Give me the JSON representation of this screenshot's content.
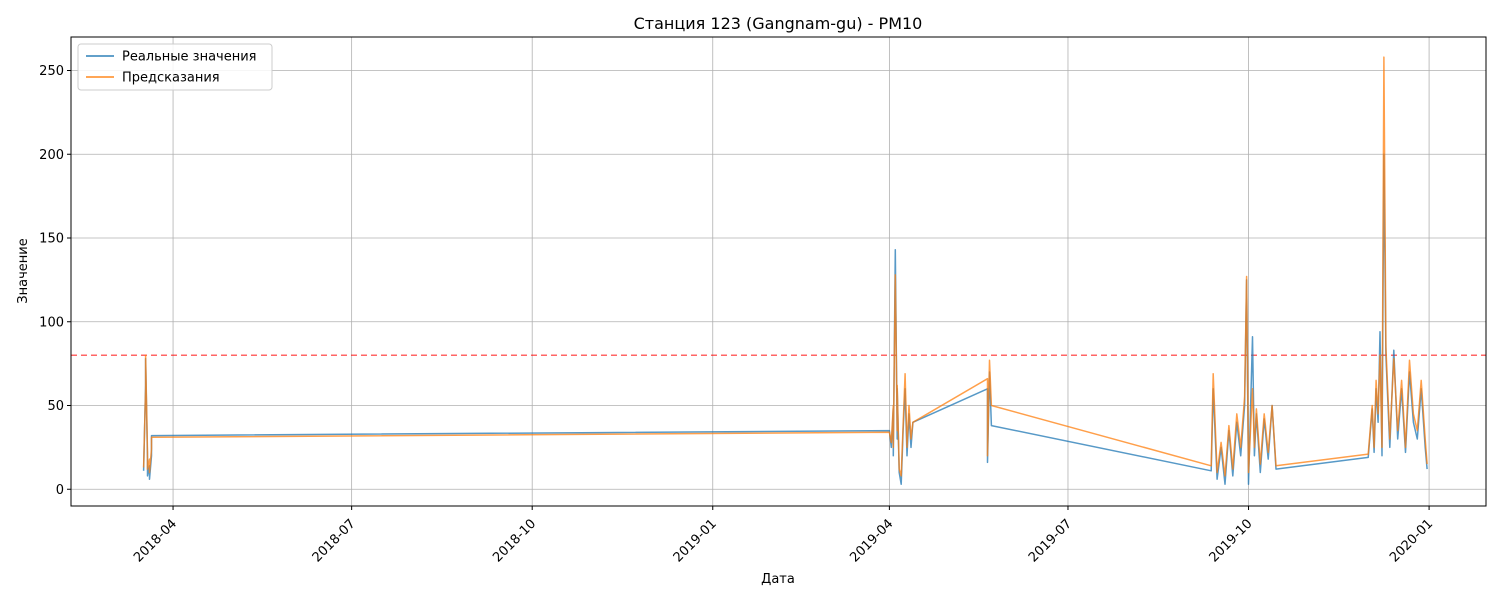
{
  "chart_data": {
    "type": "line",
    "title": "Станция 123 (Gangnam-gu) - PM10",
    "xlabel": "Дата",
    "ylabel": "Значение",
    "x_ticks": [
      "2018-04",
      "2018-07",
      "2018-10",
      "2019-01",
      "2019-04",
      "2019-07",
      "2019-10",
      "2020-01"
    ],
    "y_ticks": [
      0,
      50,
      100,
      150,
      200,
      250
    ],
    "xlim": [
      "2018-02-08",
      "2020-01-30"
    ],
    "ylim": [
      -10,
      270
    ],
    "grid": true,
    "legend_position": "top-left",
    "threshold": {
      "y": 80,
      "color": "#ff0000",
      "style": "dashed"
    },
    "series": [
      {
        "name": "Реальные значения",
        "color": "#1f77b4",
        "x": [
          "2018-03-17",
          "2018-03-18",
          "2018-03-18",
          "2018-03-19",
          "2018-03-19",
          "2018-03-20",
          "2018-03-20",
          "2018-03-21",
          "2018-03-21",
          "2018-03-22",
          "2018-03-22",
          "2019-04-01",
          "2019-04-02",
          "2019-04-03",
          "2019-04-03",
          "2019-04-04",
          "2019-04-05",
          "2019-04-05",
          "2019-04-06",
          "2019-04-07",
          "2019-04-08",
          "2019-04-09",
          "2019-04-10",
          "2019-04-11",
          "2019-04-12",
          "2019-04-13",
          "2019-05-21",
          "2019-05-21",
          "2019-05-22",
          "2019-05-23",
          "2019-09-12",
          "2019-09-13",
          "2019-09-15",
          "2019-09-17",
          "2019-09-19",
          "2019-09-21",
          "2019-09-23",
          "2019-09-25",
          "2019-09-27",
          "2019-09-29",
          "2019-09-30",
          "2019-10-01",
          "2019-10-03",
          "2019-10-04",
          "2019-10-05",
          "2019-10-07",
          "2019-10-09",
          "2019-10-11",
          "2019-10-13",
          "2019-10-15",
          "2019-12-01",
          "2019-12-03",
          "2019-12-04",
          "2019-12-05",
          "2019-12-06",
          "2019-12-07",
          "2019-12-08",
          "2019-12-09",
          "2019-12-10",
          "2019-12-12",
          "2019-12-14",
          "2019-12-16",
          "2019-12-18",
          "2019-12-20",
          "2019-12-22",
          "2019-12-24",
          "2019-12-26",
          "2019-12-28",
          "2019-12-30",
          "2019-12-31"
        ],
        "y": [
          11,
          62,
          78,
          18,
          8,
          14,
          6,
          20,
          32,
          32,
          32,
          35,
          25,
          48,
          20,
          143,
          30,
          60,
          10,
          3,
          35,
          60,
          20,
          45,
          25,
          40,
          60,
          16,
          70,
          38,
          11,
          60,
          6,
          25,
          3,
          35,
          8,
          40,
          20,
          50,
          125,
          3,
          91,
          20,
          45,
          10,
          42,
          18,
          50,
          12,
          19,
          48,
          22,
          60,
          40,
          94,
          20,
          200,
          80,
          25,
          83,
          30,
          60,
          22,
          70,
          40,
          30,
          60,
          25,
          12
        ]
      },
      {
        "name": "Предсказания",
        "color": "#ff7f0e",
        "x": [
          "2018-03-17",
          "2018-03-18",
          "2018-03-18",
          "2018-03-19",
          "2018-03-19",
          "2018-03-20",
          "2018-03-20",
          "2018-03-21",
          "2018-03-21",
          "2018-03-22",
          "2018-03-22",
          "2019-04-01",
          "2019-04-02",
          "2019-04-03",
          "2019-04-03",
          "2019-04-04",
          "2019-04-05",
          "2019-04-05",
          "2019-04-06",
          "2019-04-07",
          "2019-04-08",
          "2019-04-09",
          "2019-04-10",
          "2019-04-11",
          "2019-04-12",
          "2019-04-13",
          "2019-05-21",
          "2019-05-21",
          "2019-05-22",
          "2019-05-23",
          "2019-09-12",
          "2019-09-13",
          "2019-09-15",
          "2019-09-17",
          "2019-09-19",
          "2019-09-21",
          "2019-09-23",
          "2019-09-25",
          "2019-09-27",
          "2019-09-29",
          "2019-09-30",
          "2019-10-01",
          "2019-10-03",
          "2019-10-04",
          "2019-10-05",
          "2019-10-07",
          "2019-10-09",
          "2019-10-11",
          "2019-10-13",
          "2019-10-15",
          "2019-12-01",
          "2019-12-03",
          "2019-12-04",
          "2019-12-05",
          "2019-12-06",
          "2019-12-07",
          "2019-12-08",
          "2019-12-09",
          "2019-12-10",
          "2019-12-12",
          "2019-12-14",
          "2019-12-16",
          "2019-12-18",
          "2019-12-20",
          "2019-12-22",
          "2019-12-24",
          "2019-12-26",
          "2019-12-28",
          "2019-12-30",
          "2019-12-31"
        ],
        "y": [
          13,
          60,
          80,
          22,
          12,
          18,
          10,
          24,
          31,
          31,
          31,
          34,
          28,
          50,
          25,
          128,
          35,
          62,
          12,
          8,
          38,
          69,
          25,
          50,
          30,
          40,
          66,
          20,
          77,
          50,
          14,
          69,
          10,
          28,
          8,
          38,
          12,
          45,
          25,
          55,
          127,
          10,
          60,
          25,
          48,
          15,
          45,
          22,
          50,
          14,
          21,
          50,
          25,
          65,
          45,
          80,
          25,
          258,
          85,
          30,
          78,
          35,
          65,
          25,
          77,
          45,
          35,
          65,
          30,
          15
        ]
      }
    ]
  }
}
